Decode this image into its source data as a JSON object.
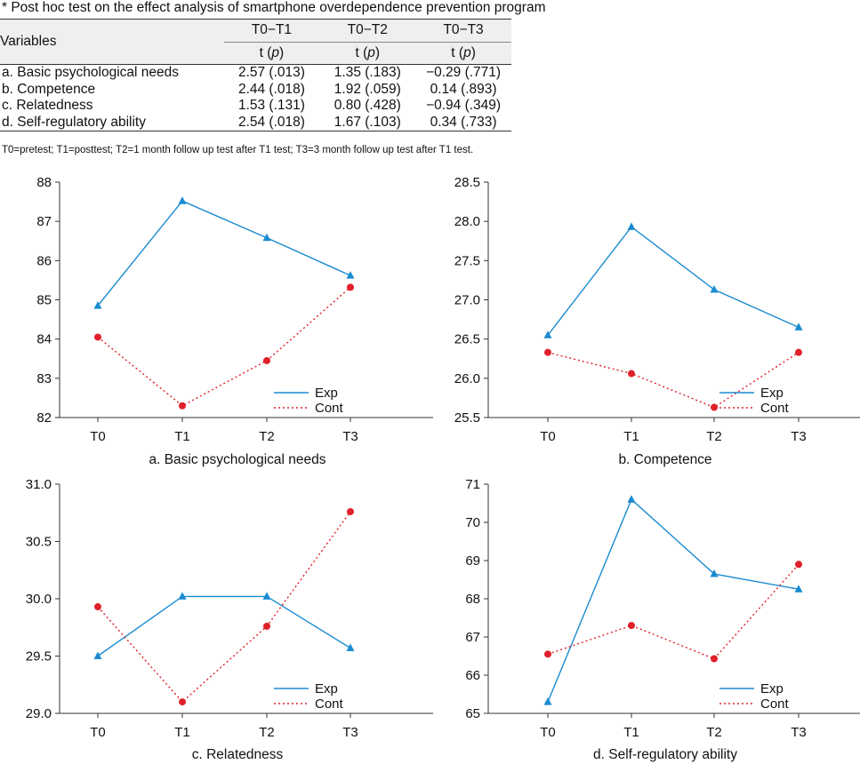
{
  "table": {
    "caption": "* Post hoc test on the effect analysis of smartphone overdependence prevention program",
    "header": {
      "variables": "Variables",
      "cols": [
        "T0−T1",
        "T0−T2",
        "T0−T3"
      ],
      "sub_t": "t (",
      "sub_p": "p",
      "sub_close": ")"
    },
    "rows": [
      {
        "label": "a. Basic psychological needs",
        "values": [
          "2.57 (.013)",
          "1.35 (.183)",
          "−0.29 (.771)"
        ]
      },
      {
        "label": "b. Competence",
        "values": [
          "2.44 (.018)",
          "1.92 (.059)",
          "0.14 (.893)"
        ]
      },
      {
        "label": "c. Relatedness",
        "values": [
          "1.53 (.131)",
          "0.80 (.428)",
          "−0.94 (.349)"
        ]
      },
      {
        "label": "d. Self-regulatory ability",
        "values": [
          "2.54 (.018)",
          "1.67 (.103)",
          "0.34 (.733)"
        ]
      }
    ],
    "note": "T0=pretest; T1=posttest; T2=1 month follow up test after T1 test; T3=3 month follow up test after T1 test."
  },
  "colors": {
    "exp": "#1a8bd0",
    "cont": "#e0202a",
    "axis": "#333333"
  },
  "chart_data": [
    {
      "type": "line",
      "title": "a. Basic psychological needs",
      "categories": [
        "T0",
        "T1",
        "T2",
        "T3"
      ],
      "ylim": [
        82,
        88
      ],
      "yticks": [
        "82",
        "83",
        "84",
        "85",
        "86",
        "87",
        "88"
      ],
      "legend": "bottom-right",
      "grid": false,
      "series": [
        {
          "name": "Exp",
          "style": "solid",
          "marker": "triangle",
          "values": [
            84.85,
            87.52,
            86.58,
            85.62
          ]
        },
        {
          "name": "Cont",
          "style": "dotted",
          "marker": "circle",
          "values": [
            84.05,
            82.3,
            83.45,
            85.32
          ]
        }
      ]
    },
    {
      "type": "line",
      "title": "b. Competence",
      "categories": [
        "T0",
        "T1",
        "T2",
        "T3"
      ],
      "ylim": [
        25.5,
        28.5
      ],
      "yticks": [
        "25.5",
        "26.0",
        "26.5",
        "27.0",
        "27.5",
        "28.0",
        "28.5"
      ],
      "legend": "bottom-right",
      "grid": false,
      "series": [
        {
          "name": "Exp",
          "style": "solid",
          "marker": "triangle",
          "values": [
            26.55,
            27.93,
            27.13,
            26.65
          ]
        },
        {
          "name": "Cont",
          "style": "dotted",
          "marker": "circle",
          "values": [
            26.33,
            26.06,
            25.63,
            26.33
          ]
        }
      ]
    },
    {
      "type": "line",
      "title": "c. Relatedness",
      "categories": [
        "T0",
        "T1",
        "T2",
        "T3"
      ],
      "ylim": [
        29.0,
        31.0
      ],
      "yticks": [
        "29.0",
        "29.5",
        "30.0",
        "30.5",
        "31.0"
      ],
      "legend": "bottom-right",
      "grid": false,
      "series": [
        {
          "name": "Exp",
          "style": "solid",
          "marker": "triangle",
          "values": [
            29.5,
            30.02,
            30.02,
            29.57
          ]
        },
        {
          "name": "Cont",
          "style": "dotted",
          "marker": "circle",
          "values": [
            29.93,
            29.1,
            29.76,
            30.76
          ]
        }
      ]
    },
    {
      "type": "line",
      "title": "d. Self-regulatory ability",
      "categories": [
        "T0",
        "T1",
        "T2",
        "T3"
      ],
      "ylim": [
        65,
        71
      ],
      "yticks": [
        "65",
        "66",
        "67",
        "68",
        "69",
        "70",
        "71"
      ],
      "legend": "bottom-right",
      "grid": false,
      "series": [
        {
          "name": "Exp",
          "style": "solid",
          "marker": "triangle",
          "values": [
            65.3,
            70.6,
            68.65,
            68.25
          ]
        },
        {
          "name": "Cont",
          "style": "dotted",
          "marker": "circle",
          "values": [
            66.55,
            67.3,
            66.43,
            68.9
          ]
        }
      ]
    }
  ]
}
